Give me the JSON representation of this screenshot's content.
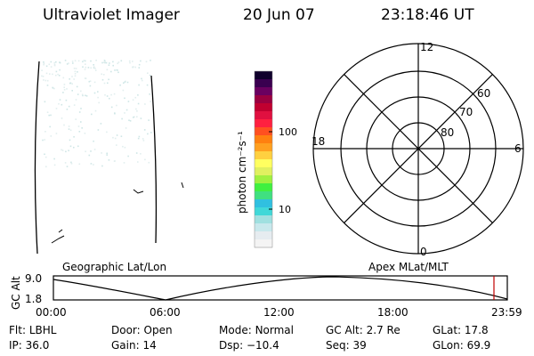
{
  "header": {
    "title": "Ultraviolet Imager",
    "date": "20 Jun 07",
    "time": "23:18:46 UT"
  },
  "colorbar": {
    "unit_label": "photon cm⁻²s⁻¹",
    "ticks": [
      "100",
      "10"
    ],
    "tick_values": [
      100,
      10
    ],
    "colors": [
      "#f4f4f4",
      "#e6ecf0",
      "#c8e8ec",
      "#a0e0e0",
      "#40d8d8",
      "#30c0e0",
      "#40e080",
      "#40f040",
      "#a0f040",
      "#e0f060",
      "#ffff60",
      "#ffd040",
      "#ffa020",
      "#ff8010",
      "#ff5020",
      "#ff2040",
      "#e01040",
      "#c00030",
      "#9a0040",
      "#6a0060",
      "#3a0050",
      "#10002c"
    ]
  },
  "polar_plot": {
    "labels_mlt": [
      "12",
      "6",
      "0",
      "18"
    ],
    "labels_mlat": [
      "60",
      "70",
      "80"
    ]
  },
  "timeline": {
    "left_title": "Geographic Lat/Lon",
    "right_title": "Apex MLat/MLT",
    "ylabel": "GC Alt",
    "ytick_top": "9.0",
    "ytick_bottom": "1.8",
    "xticks": [
      "00:00",
      "06:00",
      "12:00",
      "18:00",
      "23:59"
    ],
    "marker_color": "#c00000"
  },
  "info": {
    "flt_label": "Flt:",
    "flt_value": "LBHL",
    "ip_label": "IP:",
    "ip_value": "36.0",
    "door_label": "Door:",
    "door_value": "Open",
    "gain_label": "Gain:",
    "gain_value": "14",
    "mode_label": "Mode:",
    "mode_value": "Normal",
    "dsp_label": "Dsp:",
    "dsp_value": "−10.4",
    "gcalt_label": "GC Alt:",
    "gcalt_value": "2.7 Re",
    "seq_label": "Seq:",
    "seq_value": "39",
    "glat_label": "GLat:",
    "glat_value": "17.8",
    "glon_label": "GLon:",
    "glon_value": "69.9"
  }
}
